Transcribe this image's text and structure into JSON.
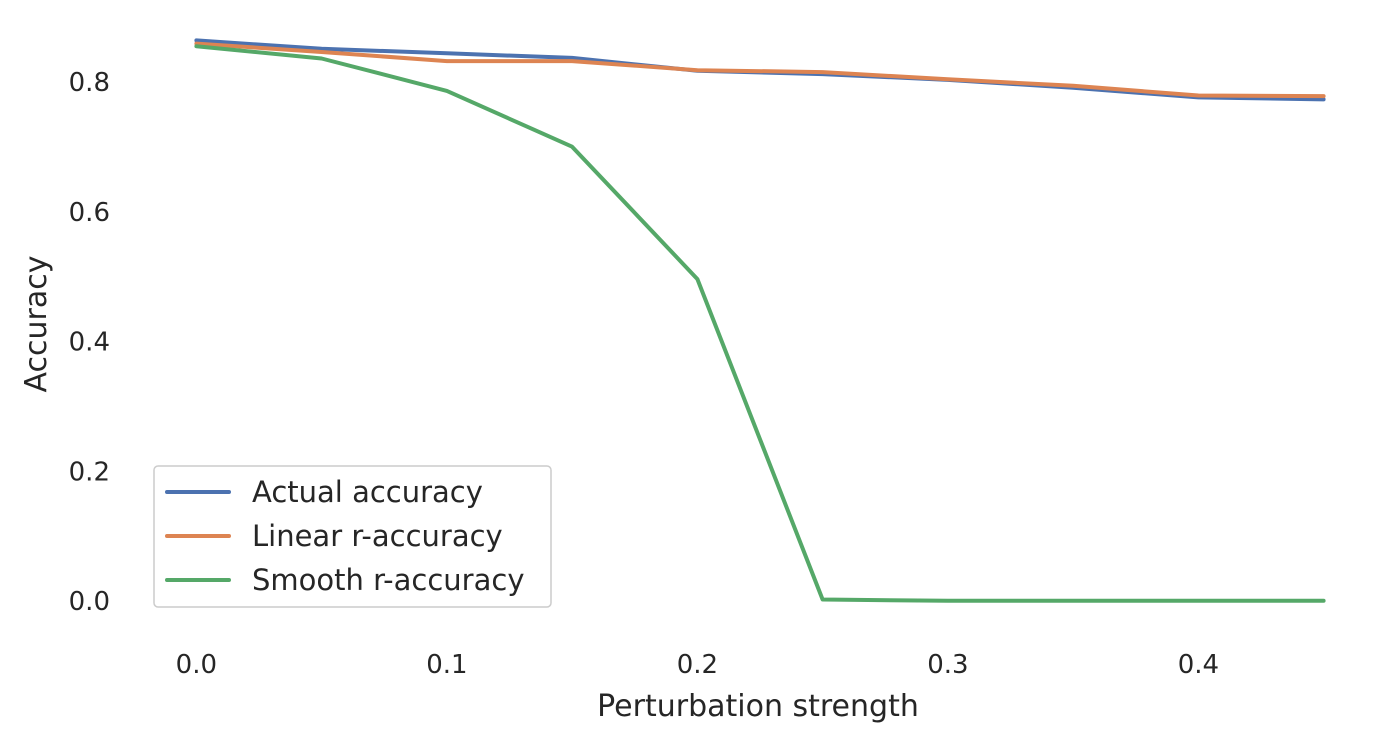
{
  "chart_data": {
    "type": "line",
    "xlabel": "Perturbation strength",
    "ylabel": "Accuracy",
    "x": [
      0.0,
      0.05,
      0.1,
      0.15,
      0.2,
      0.25,
      0.3,
      0.35,
      0.4,
      0.45
    ],
    "xlim": [
      -0.0225,
      0.4725
    ],
    "ylim": [
      -0.043,
      0.902
    ],
    "xticks": [
      0.0,
      0.1,
      0.2,
      0.3,
      0.4
    ],
    "xtick_labels": [
      "0.0",
      "0.1",
      "0.2",
      "0.3",
      "0.4"
    ],
    "yticks": [
      0.0,
      0.2,
      0.4,
      0.6,
      0.8
    ],
    "ytick_labels": [
      "0.0",
      "0.2",
      "0.4",
      "0.6",
      "0.8"
    ],
    "grid": false,
    "legend_position": "lower-left",
    "series": [
      {
        "name": "Actual accuracy",
        "color": "#4c72b0",
        "values": [
          0.866,
          0.853,
          0.846,
          0.839,
          0.819,
          0.814,
          0.805,
          0.793,
          0.778,
          0.775
        ]
      },
      {
        "name": "Linear r-accuracy",
        "color": "#dd8452",
        "values": [
          0.861,
          0.848,
          0.834,
          0.834,
          0.82,
          0.817,
          0.806,
          0.796,
          0.781,
          0.78
        ]
      },
      {
        "name": "Smooth r-accuracy",
        "color": "#55a868",
        "values": [
          0.857,
          0.838,
          0.788,
          0.702,
          0.498,
          0.004,
          0.002,
          0.002,
          0.002,
          0.002
        ]
      }
    ]
  }
}
